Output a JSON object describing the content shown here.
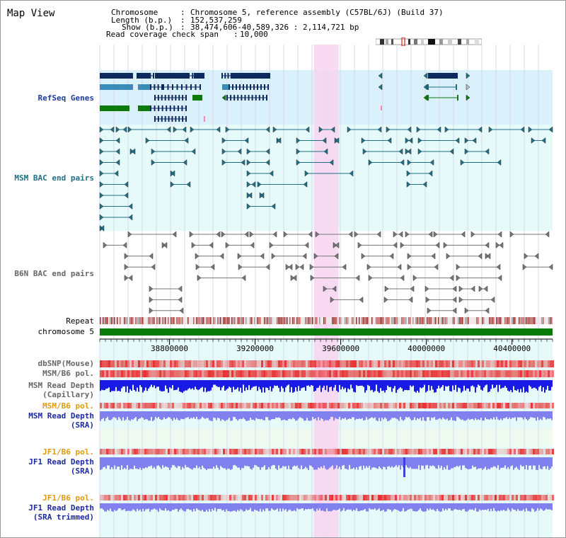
{
  "title": "Map View",
  "info": {
    "chromosome_key": "Chromosome",
    "chromosome_val": "Chromosome 5, reference assembly (C57BL/6J) (Build 37)",
    "length_key": "Length (b.p.)",
    "length_val": "152,537,259",
    "show_key": "Show (b.p.)",
    "show_val": "38,474,606-40,589,326 : 2,114,721 bp",
    "coverage_key": "Read coverage check span",
    "coverage_val": "10,000"
  },
  "view": {
    "start": 38474606,
    "end": 40589326
  },
  "highlight": {
    "start": 39475000,
    "end": 39590000
  },
  "ruler": {
    "ticks": [
      38800000,
      39200000,
      39600000,
      40000000,
      40400000
    ],
    "tick_labels": [
      "38800000",
      "39200000",
      "39600000",
      "40000000",
      "40400000"
    ]
  },
  "tracks": {
    "refseq": "RefSeq Genes",
    "msm_bac": "MSM BAC end pairs",
    "b6n_bac": "B6N BAC end pairs",
    "repeat": "Repeat",
    "chromosome": "chromosome 5",
    "dbsnp": "dbSNP(Mouse)",
    "msm_pol1": "MSM/B6 pol.",
    "msm_depth_cap1": "MSM Read Depth",
    "msm_depth_cap2": "(Capillary)",
    "msm_pol2": "MSM/B6 pol.",
    "msm_depth_sra1": "MSM Read Depth",
    "msm_depth_sra2": "(SRA)",
    "jf1_pol1": "JF1/B6 pol.",
    "jf1_depth_sra1": "JF1 Read Depth",
    "jf1_depth_sra2": "(SRA)",
    "jf1_pol2": "JF1/B6 pol.",
    "jf1_depth_trim1": "JF1 Read Depth",
    "jf1_depth_trim2": "(SRA trimmed)"
  },
  "colors": {
    "refseq_bg": "#daf0fa",
    "msm_bac_bg": "#e6fafa",
    "b6n_bg": "#ffffff",
    "highlight": "#f7d4f0",
    "chromosome": "#0a7a0a",
    "dark_gene": "#0d2a5e",
    "light_gene": "#3a8cb8",
    "green_gene": "#0d7a0d",
    "teal_pair": "#1f6f86",
    "gray_pair": "#777777",
    "depth_blue": "#1a1ae6",
    "depth_sra": "#8080ee",
    "pol_red": "#e83030"
  }
}
